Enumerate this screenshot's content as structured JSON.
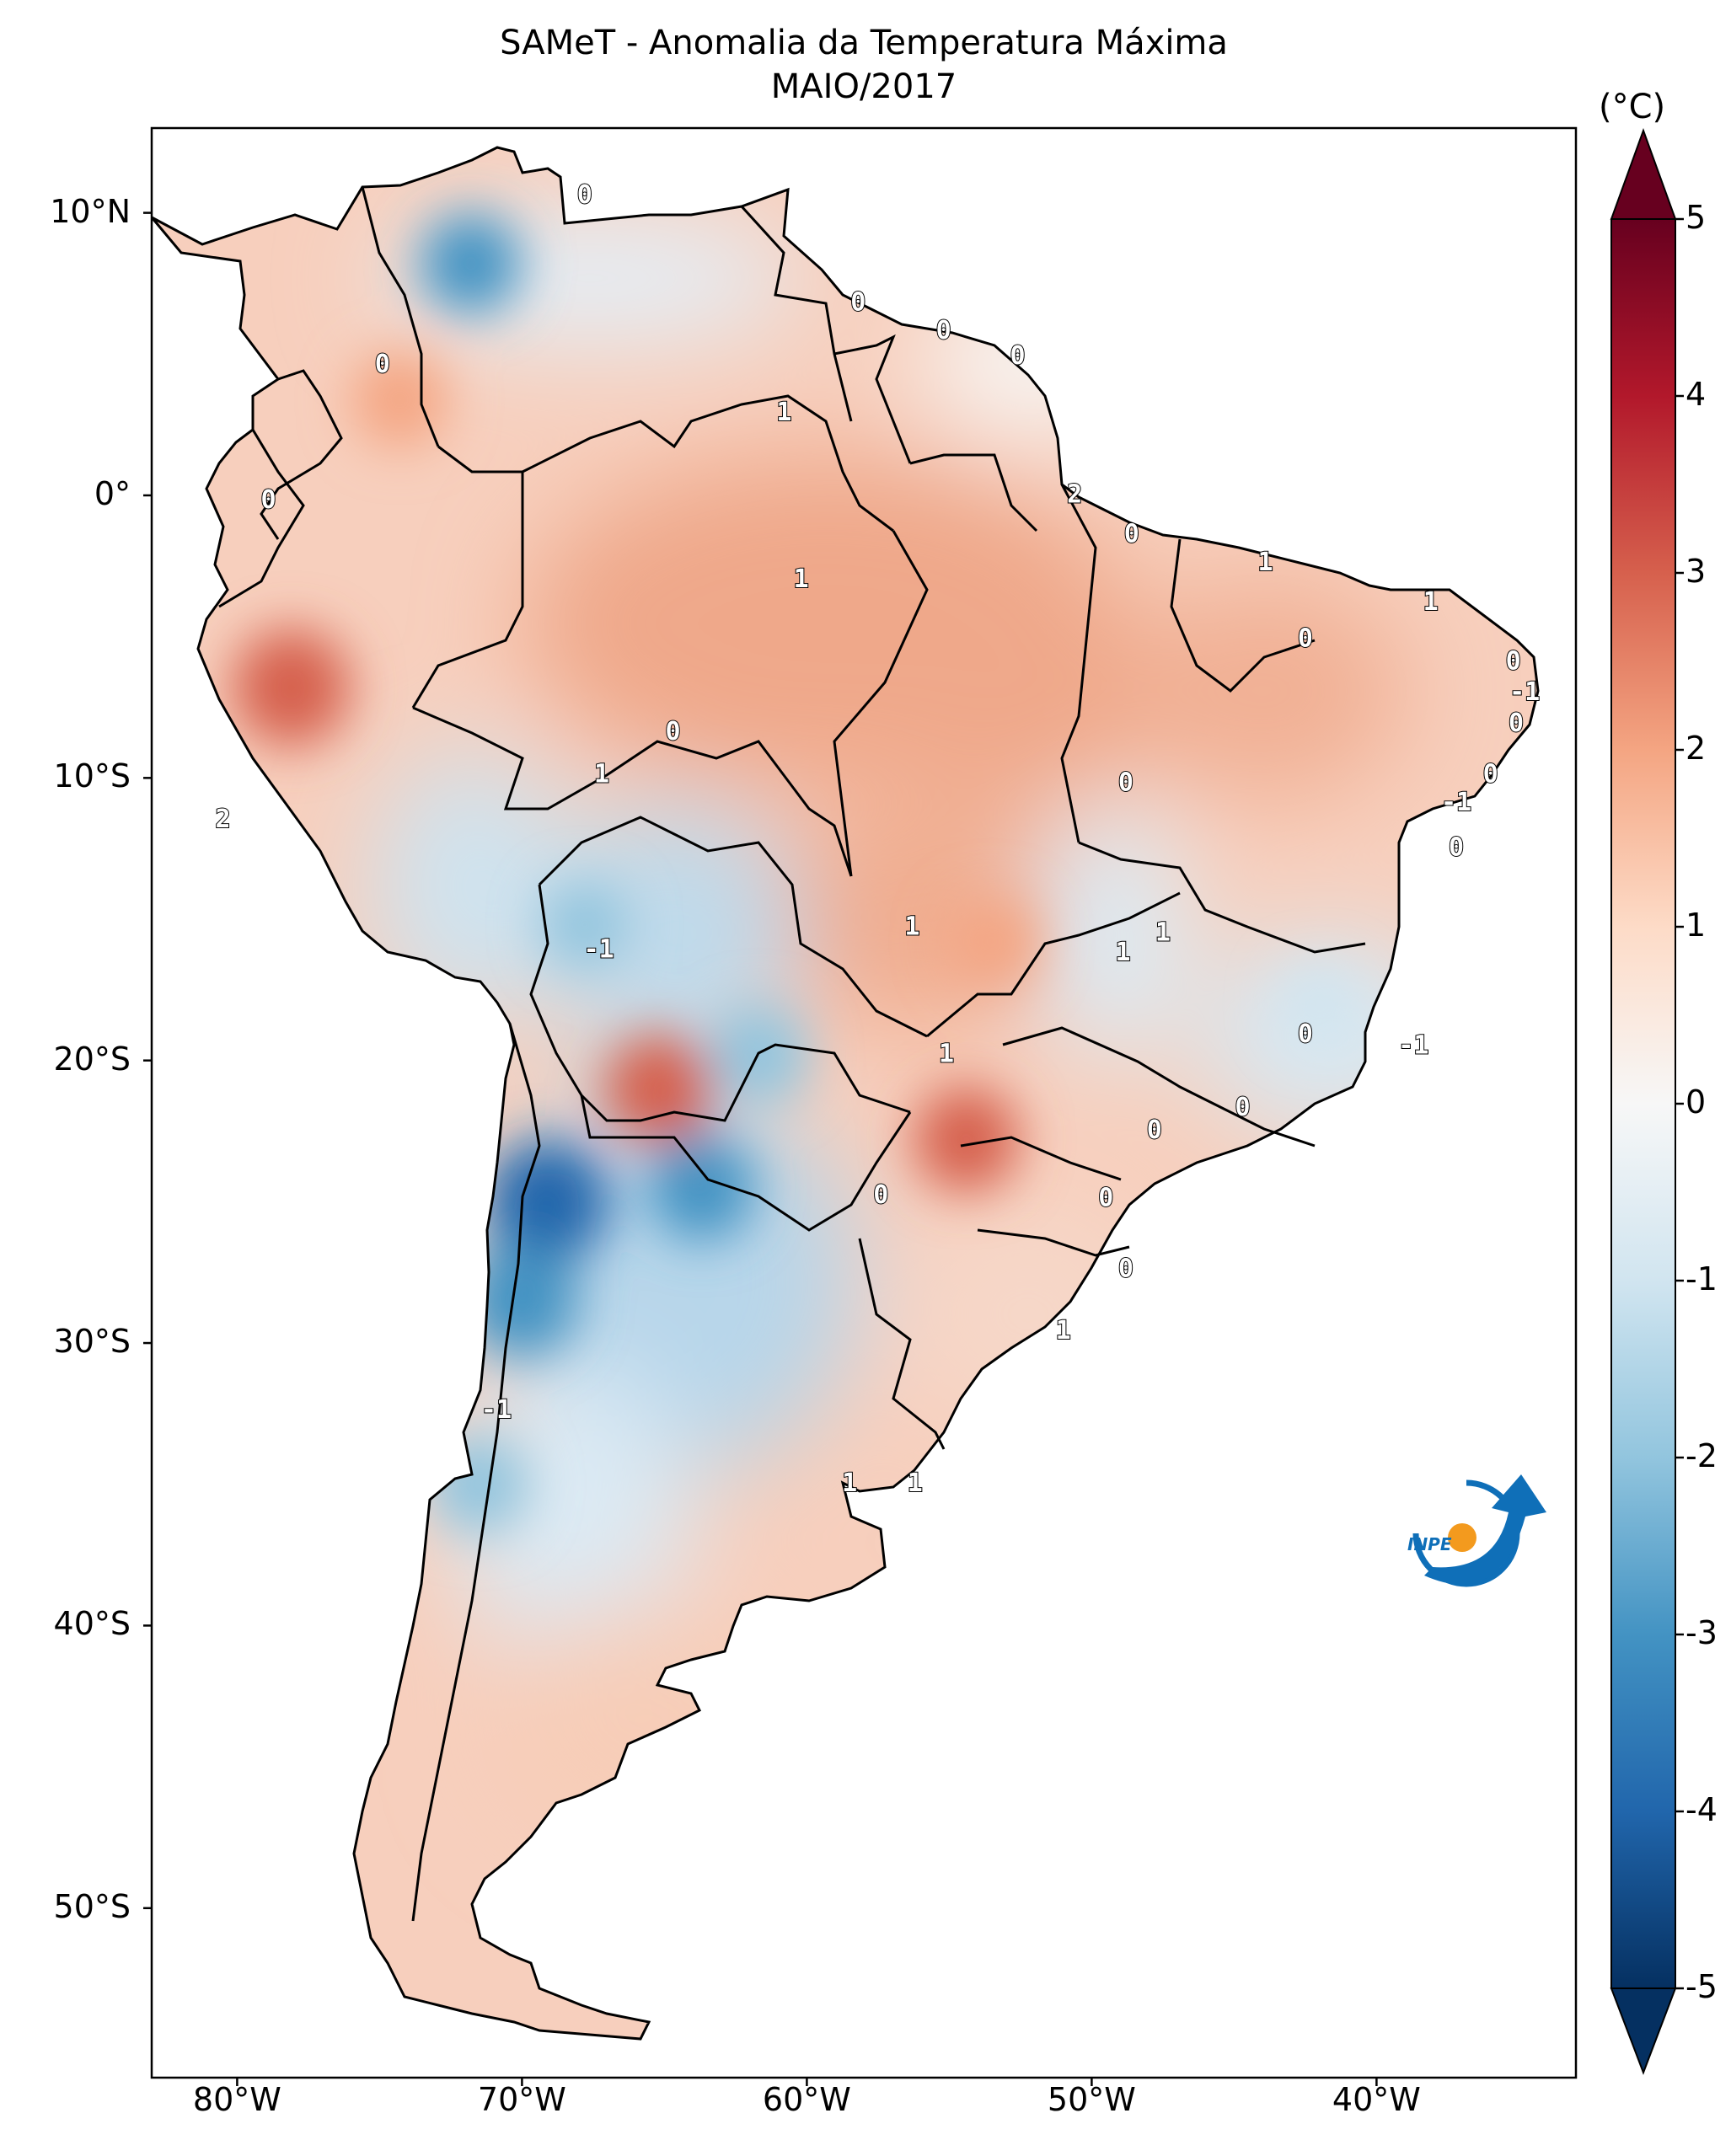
{
  "title": "SAMeT - Anomalia da Temperatura Máxima",
  "subtitle": "MAIO/2017",
  "colorbar": {
    "unit": "(°C)",
    "min": -5,
    "max": 5,
    "ticks": [
      "5",
      "4",
      "3",
      "2",
      "1",
      "0",
      "-1",
      "-2",
      "-3",
      "-4",
      "-5"
    ],
    "colors": [
      "#67001f",
      "#b2182b",
      "#d6604d",
      "#f4a582",
      "#fddbc7",
      "#f7f7f7",
      "#d1e5f0",
      "#92c5de",
      "#4393c3",
      "#2166ac",
      "#053061"
    ]
  },
  "axes": {
    "lon_ticks": [
      "80°W",
      "70°W",
      "60°W",
      "50°W",
      "40°W"
    ],
    "lat_ticks": [
      "10°N",
      "0°",
      "10°S",
      "20°S",
      "30°S",
      "40°S",
      "50°S"
    ],
    "lon_range": [
      -83,
      -33
    ],
    "lat_range": [
      -56,
      13
    ]
  },
  "contour_labels": [
    {
      "text": "0",
      "lon": -67.8,
      "lat": 10.6
    },
    {
      "text": "0",
      "lon": -74.9,
      "lat": 4.6
    },
    {
      "text": "0",
      "lon": -78.9,
      "lat": -0.2
    },
    {
      "text": "0",
      "lon": -58.2,
      "lat": 6.8
    },
    {
      "text": "0",
      "lon": -55.2,
      "lat": 5.8
    },
    {
      "text": "0",
      "lon": -52.6,
      "lat": 4.9
    },
    {
      "text": "1",
      "lon": -60.8,
      "lat": 2.9
    },
    {
      "text": "2",
      "lon": -50.6,
      "lat": 0.0
    },
    {
      "text": "0",
      "lon": -48.6,
      "lat": -1.4
    },
    {
      "text": "1",
      "lon": -60.2,
      "lat": -3.0
    },
    {
      "text": "1",
      "lon": -43.9,
      "lat": -2.4
    },
    {
      "text": "1",
      "lon": -38.1,
      "lat": -3.8
    },
    {
      "text": "0",
      "lon": -42.5,
      "lat": -5.1
    },
    {
      "text": "0",
      "lon": -35.2,
      "lat": -5.9
    },
    {
      "text": "-1",
      "lon": -34.8,
      "lat": -7.0
    },
    {
      "text": "0",
      "lon": -35.1,
      "lat": -8.1
    },
    {
      "text": "0",
      "lon": -36.0,
      "lat": -9.9
    },
    {
      "text": "-1",
      "lon": -37.2,
      "lat": -10.9
    },
    {
      "text": "1",
      "lon": -67.2,
      "lat": -9.9
    },
    {
      "text": "0",
      "lon": -64.7,
      "lat": -8.4
    },
    {
      "text": "0",
      "lon": -48.8,
      "lat": -10.2
    },
    {
      "text": "2",
      "lon": -80.5,
      "lat": -11.5
    },
    {
      "text": "0",
      "lon": -37.2,
      "lat": -12.5
    },
    {
      "text": "-1",
      "lon": -67.3,
      "lat": -16.1
    },
    {
      "text": "1",
      "lon": -56.3,
      "lat": -15.3
    },
    {
      "text": "1",
      "lon": -47.5,
      "lat": -15.5
    },
    {
      "text": "1",
      "lon": -48.9,
      "lat": -16.2
    },
    {
      "text": "1",
      "lon": -55.1,
      "lat": -19.8
    },
    {
      "text": "0",
      "lon": -42.5,
      "lat": -19.1
    },
    {
      "text": "-1",
      "lon": -38.7,
      "lat": -19.5
    },
    {
      "text": "0",
      "lon": -44.7,
      "lat": -21.7
    },
    {
      "text": "0",
      "lon": -47.8,
      "lat": -22.5
    },
    {
      "text": "0",
      "lon": -57.4,
      "lat": -24.8
    },
    {
      "text": "0",
      "lon": -49.5,
      "lat": -24.9
    },
    {
      "text": "0",
      "lon": -48.8,
      "lat": -27.4
    },
    {
      "text": "1",
      "lon": -51.0,
      "lat": -29.6
    },
    {
      "text": "-1",
      "lon": -70.9,
      "lat": -32.4
    },
    {
      "text": "1",
      "lon": -58.5,
      "lat": -35.0
    },
    {
      "text": "1",
      "lon": -56.2,
      "lat": -35.0
    }
  ],
  "hotspots": [
    {
      "lon": -78.1,
      "lat": -6.8,
      "value": 3.5
    },
    {
      "lon": -65.2,
      "lat": -21.0,
      "value": 3.0
    },
    {
      "lon": -54.4,
      "lat": -22.8,
      "value": 2.8
    },
    {
      "lon": -74.3,
      "lat": 3.4,
      "value": 2.2
    },
    {
      "lon": -53.5,
      "lat": -15.8,
      "value": 2.0
    },
    {
      "lon": -71.8,
      "lat": 8.2,
      "value": -2.5
    },
    {
      "lon": -69.1,
      "lat": -25.0,
      "value": -3.8
    },
    {
      "lon": -70.0,
      "lat": -28.5,
      "value": -3.2
    },
    {
      "lon": -63.7,
      "lat": -24.5,
      "value": -2.8
    },
    {
      "lon": -61.7,
      "lat": -19.8,
      "value": -2.4
    },
    {
      "lon": -71.5,
      "lat": -35.0,
      "value": -2.4
    },
    {
      "lon": -67.8,
      "lat": -15.2,
      "value": -1.6
    },
    {
      "lon": -42.0,
      "lat": -18.0,
      "value": -1.3
    }
  ],
  "logo": {
    "text": "INPE"
  }
}
